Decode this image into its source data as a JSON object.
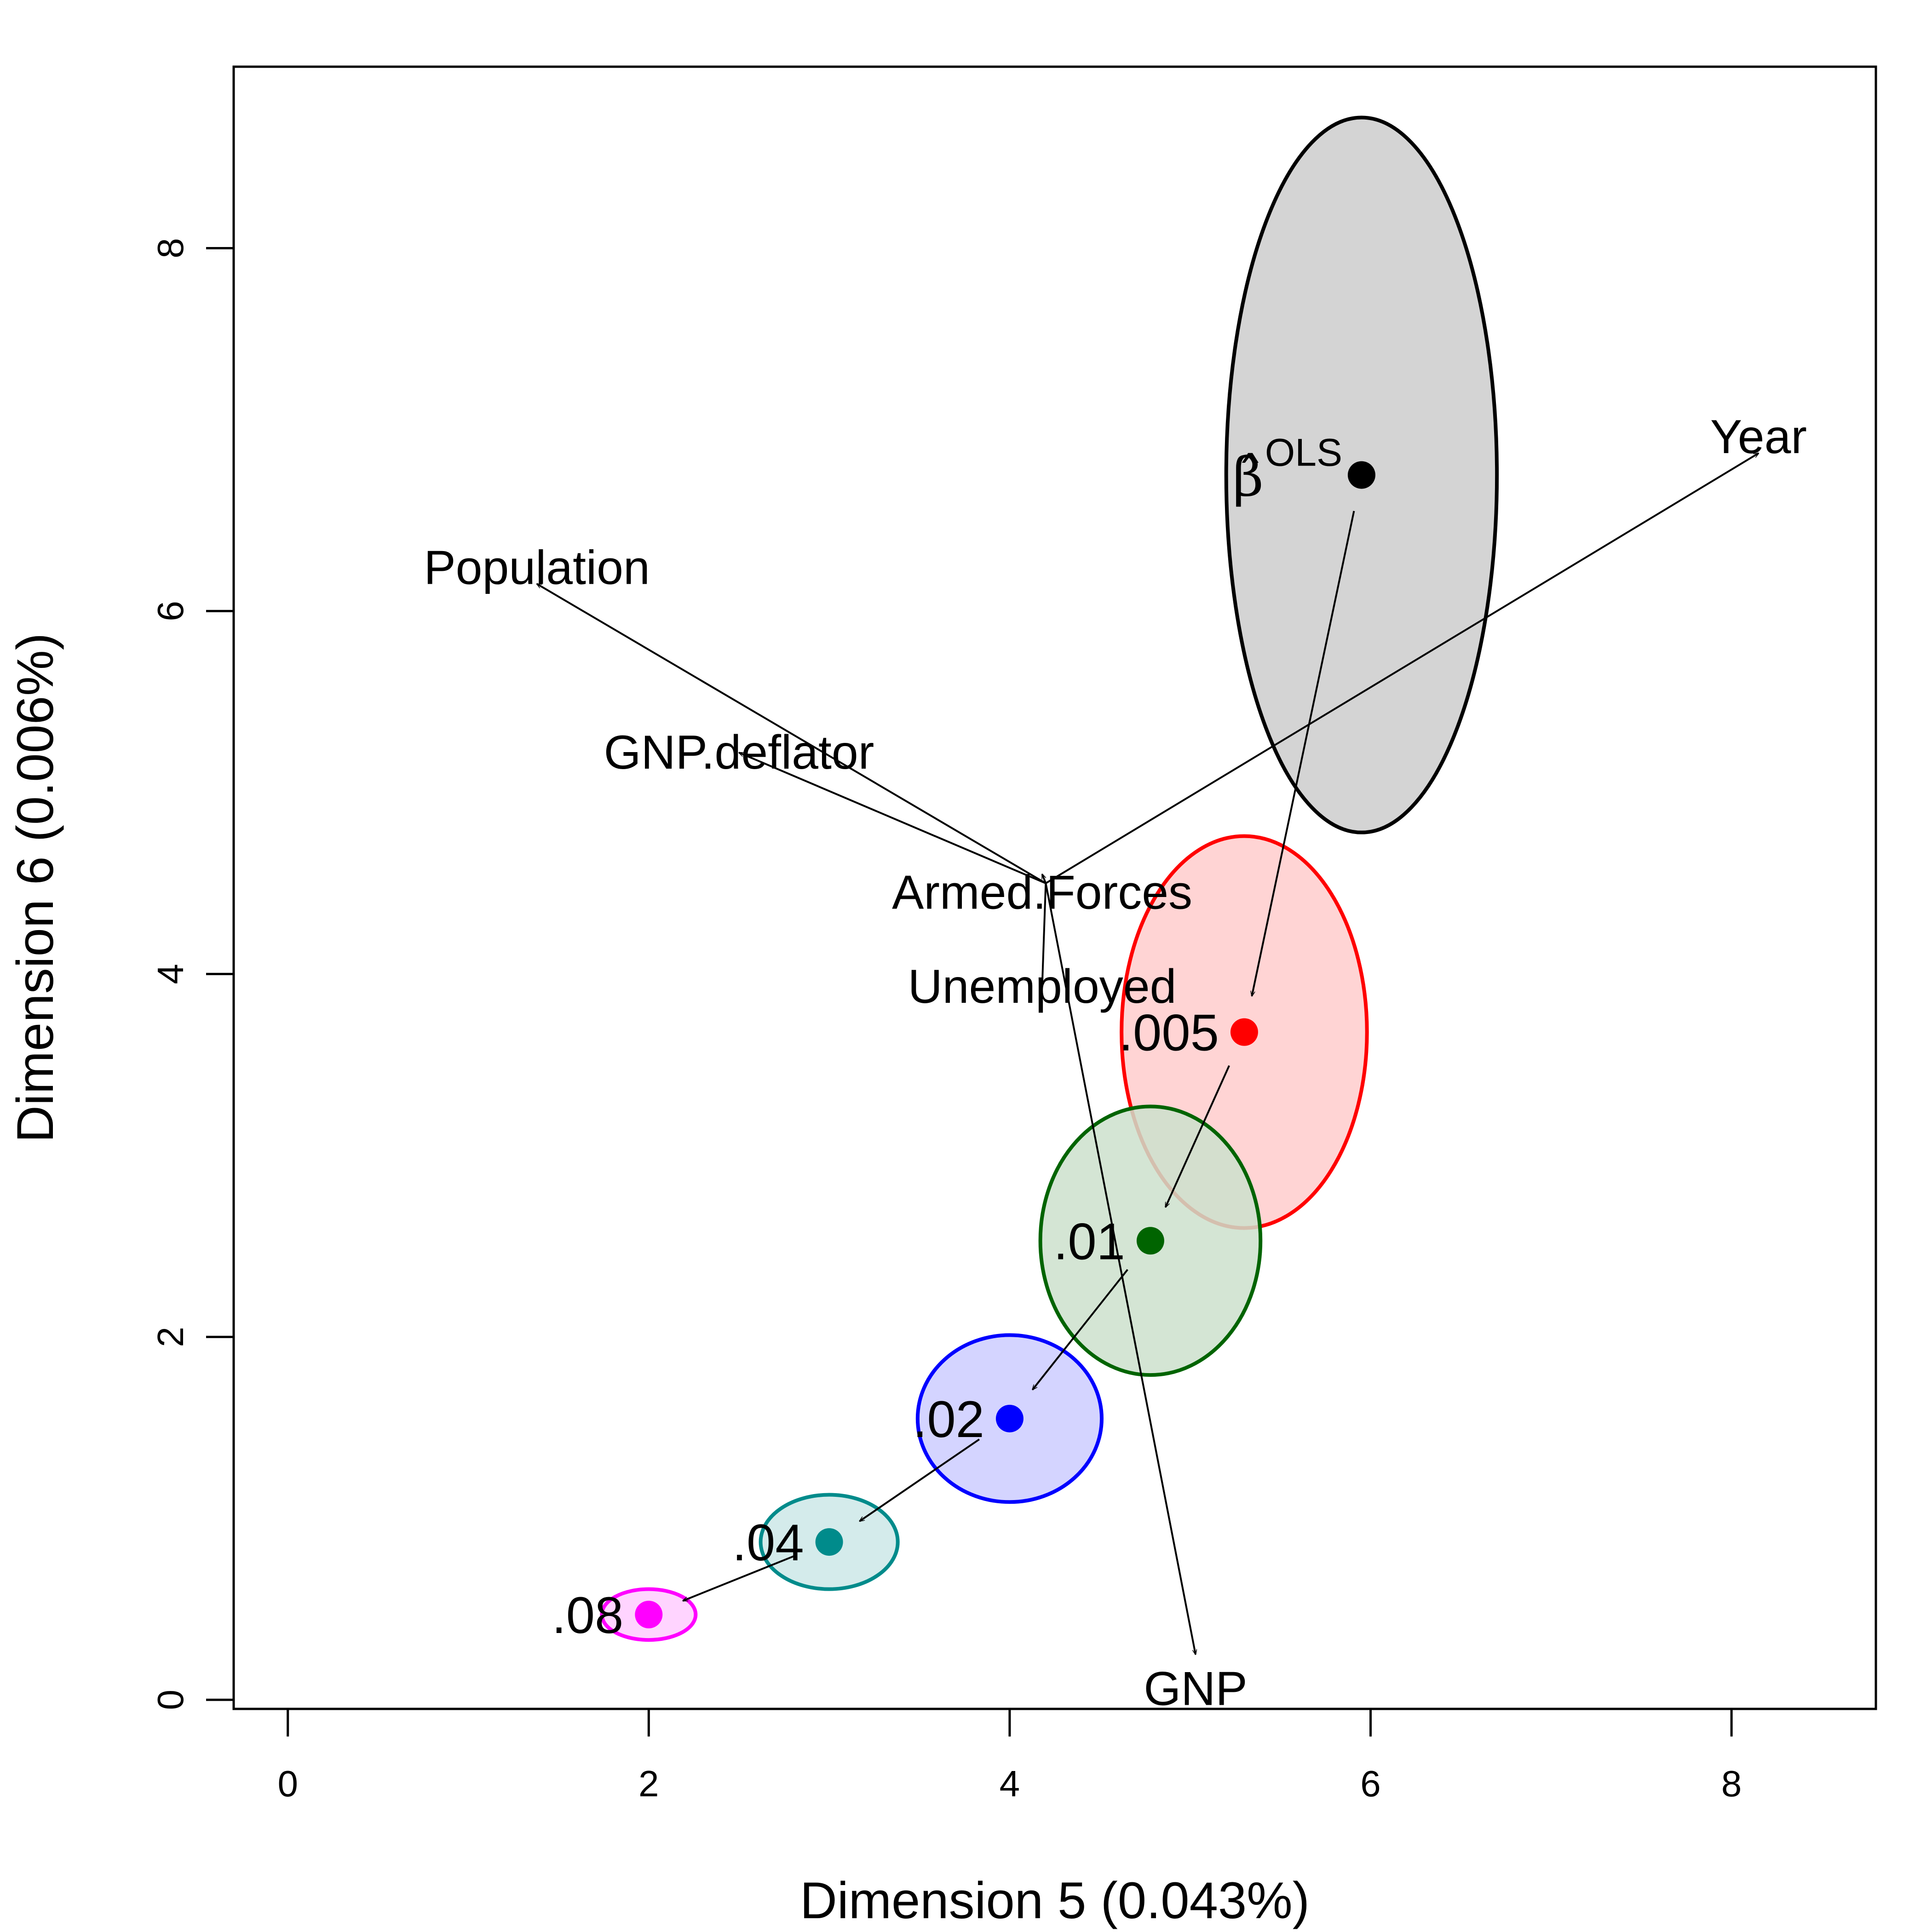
{
  "chart_data": {
    "type": "scatter",
    "xlabel": "Dimension 5 (0.043%)",
    "ylabel": "Dimension 6 (0.006%)",
    "xlim": [
      -0.3,
      8.8
    ],
    "ylim": [
      -0.05,
      9.0
    ],
    "xticks": [
      0,
      2,
      4,
      6,
      8
    ],
    "yticks": [
      0,
      2,
      4,
      6,
      8
    ],
    "tick_labels_x": [
      "0",
      "2",
      "4",
      "6",
      "8"
    ],
    "tick_labels_y": [
      "0",
      "2",
      "4",
      "6",
      "8"
    ],
    "grid": false,
    "estimates": [
      {
        "label": "OLS",
        "x": 5.95,
        "y": 6.75,
        "rx": 0.75,
        "ry": 1.97,
        "color": "#000000",
        "fill": "#cccccc"
      },
      {
        "label": ".005",
        "x": 5.3,
        "y": 3.68,
        "rx": 0.68,
        "ry": 1.08,
        "color": "#ff0000",
        "fill": "#ffcccc"
      },
      {
        "label": ".01",
        "x": 4.78,
        "y": 2.53,
        "rx": 0.61,
        "ry": 0.74,
        "color": "#006400",
        "fill": "#cce0cc"
      },
      {
        "label": ".02",
        "x": 4.0,
        "y": 1.55,
        "rx": 0.51,
        "ry": 0.46,
        "color": "#0000ff",
        "fill": "#ccccff"
      },
      {
        "label": ".04",
        "x": 3.0,
        "y": 0.87,
        "rx": 0.38,
        "ry": 0.26,
        "color": "#008b8b",
        "fill": "#cce8e8"
      },
      {
        "label": ".08",
        "x": 2.0,
        "y": 0.47,
        "rx": 0.26,
        "ry": 0.14,
        "color": "#ff00ff",
        "fill": "#ffccff"
      }
    ],
    "ols_symbol": "β̂",
    "ols_superscript": "OLS",
    "variable_origin": [
      4.2,
      4.5
    ],
    "variables": [
      {
        "name": "Year",
        "x": 8.15,
        "y": 6.87
      },
      {
        "name": "Population",
        "x": 1.38,
        "y": 6.15
      },
      {
        "name": "GNP.deflator",
        "x": 2.5,
        "y": 5.22
      },
      {
        "name": "Armed.Forces",
        "x": 4.18,
        "y": 4.55
      },
      {
        "name": "Unemployed",
        "x": 4.18,
        "y": 3.93
      },
      {
        "name": "GNP",
        "x": 5.03,
        "y": 0.25
      }
    ]
  }
}
